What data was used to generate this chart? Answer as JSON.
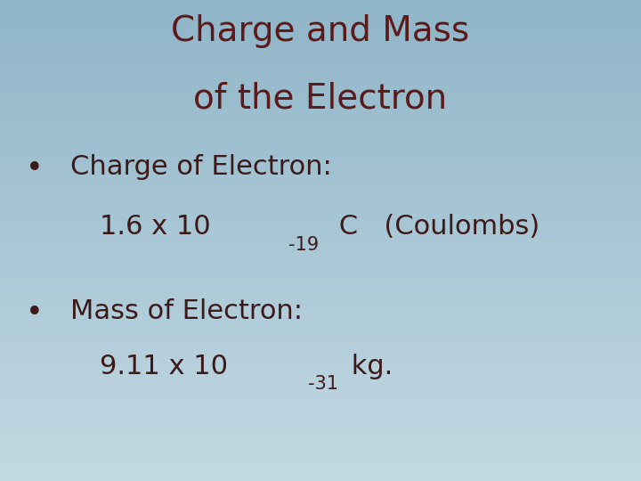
{
  "title_line1": "Charge and Mass",
  "title_line2": "of the Electron",
  "title_color": "#5C1A1A",
  "title_fontsize": 28,
  "bullet1_label": "Charge of Electron:",
  "bullet1_value": "1.6 x 10",
  "bullet1_exp": "-19",
  "bullet1_suffix": " C   (Coulombs)",
  "bullet2_label": "Mass of Electron:",
  "bullet2_value": "9.11 x 10",
  "bullet2_exp": "-31",
  "bullet2_suffix": " kg.",
  "bullet_color": "#3D1A1A",
  "text_color": "#1A1A1A",
  "bullet_fontsize": 22,
  "sub_fontsize": 15,
  "bg_color_top": "#8FB5C8",
  "bg_color_bottom": "#C2D8E2",
  "figsize": [
    7.2,
    5.4
  ],
  "dpi": 100
}
